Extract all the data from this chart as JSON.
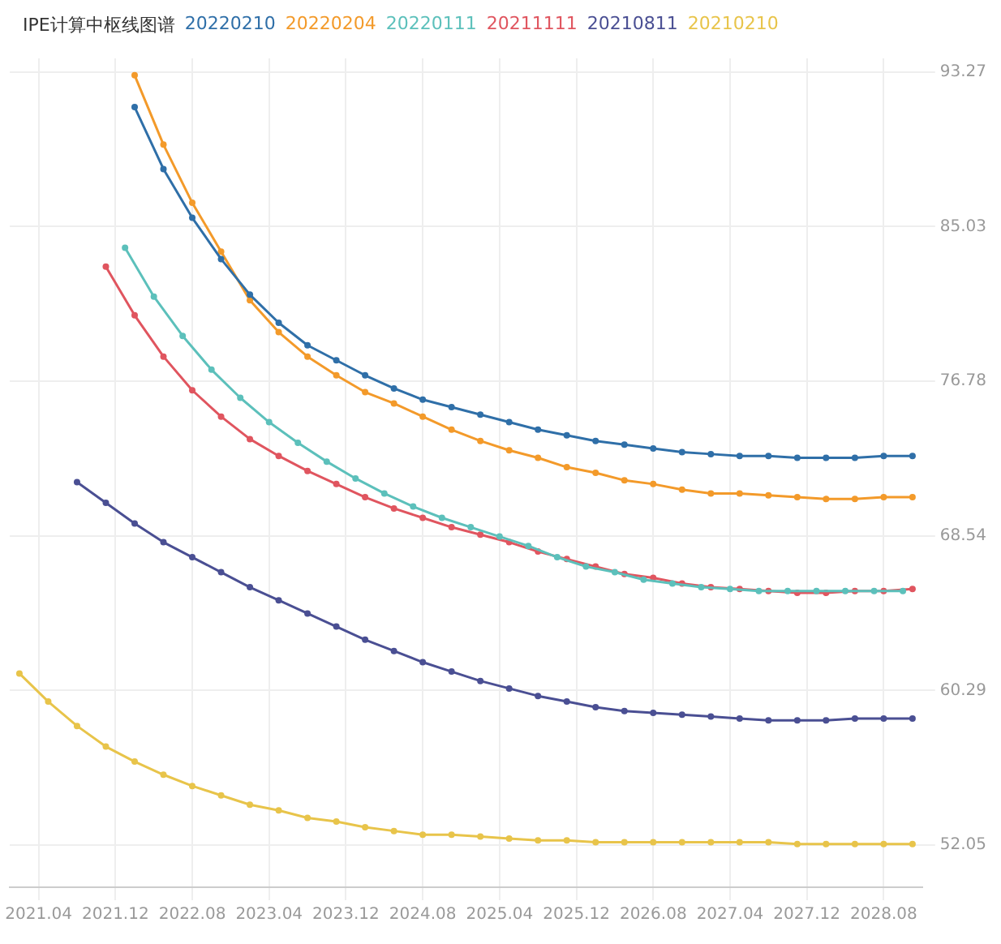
{
  "chart_data": {
    "type": "line",
    "title": "IPE计算中枢线图谱",
    "legend": "top left",
    "marker": "circle",
    "grid": true,
    "xlim": [
      "2021-01",
      "2028-12"
    ],
    "xticks": [
      {
        "value": "2021-04",
        "label": "2021.04"
      },
      {
        "value": "2021-12",
        "label": "2021.12"
      },
      {
        "value": "2022-08",
        "label": "2022.08"
      },
      {
        "value": "2023-04",
        "label": "2023.04"
      },
      {
        "value": "2023-12",
        "label": "2023.12"
      },
      {
        "value": "2024-08",
        "label": "2024.08"
      },
      {
        "value": "2025-04",
        "label": "2025.04"
      },
      {
        "value": "2025-12",
        "label": "2025.12"
      },
      {
        "value": "2026-08",
        "label": "2026.08"
      },
      {
        "value": "2027-04",
        "label": "2027.04"
      },
      {
        "value": "2027-12",
        "label": "2027.12"
      },
      {
        "value": "2028-08",
        "label": "2028.08"
      }
    ],
    "ylim": [
      49.8,
      94
    ],
    "yticks": [
      52.05,
      60.29,
      68.54,
      76.78,
      85.03,
      93.27
    ],
    "series": [
      {
        "name": "20220210",
        "color": "#2f6fa8",
        "x": [
          "2022-02",
          "2022-05",
          "2022-08",
          "2022-11",
          "2023-02",
          "2023-05",
          "2023-08",
          "2023-11",
          "2024-02",
          "2024-05",
          "2024-08",
          "2024-11",
          "2025-02",
          "2025-05",
          "2025-08",
          "2025-11",
          "2026-02",
          "2026-05",
          "2026-08",
          "2026-11",
          "2027-02",
          "2027-05",
          "2027-08",
          "2027-11",
          "2028-02",
          "2028-05",
          "2028-08",
          "2028-11"
        ],
        "values": [
          91.4,
          88.1,
          85.5,
          83.3,
          81.4,
          79.9,
          78.7,
          77.9,
          77.1,
          76.4,
          75.8,
          75.4,
          75.0,
          74.6,
          74.2,
          73.9,
          73.6,
          73.4,
          73.2,
          73.0,
          72.9,
          72.8,
          72.8,
          72.7,
          72.7,
          72.7,
          72.8,
          72.8
        ]
      },
      {
        "name": "20220204",
        "color": "#f39a2a",
        "x": [
          "2022-02",
          "2022-05",
          "2022-08",
          "2022-11",
          "2023-02",
          "2023-05",
          "2023-08",
          "2023-11",
          "2024-02",
          "2024-05",
          "2024-08",
          "2024-11",
          "2025-02",
          "2025-05",
          "2025-08",
          "2025-11",
          "2026-02",
          "2026-05",
          "2026-08",
          "2026-11",
          "2027-02",
          "2027-05",
          "2027-08",
          "2027-11",
          "2028-02",
          "2028-05",
          "2028-08",
          "2028-11"
        ],
        "values": [
          93.1,
          89.4,
          86.3,
          83.7,
          81.1,
          79.4,
          78.1,
          77.1,
          76.2,
          75.6,
          74.9,
          74.2,
          73.6,
          73.1,
          72.7,
          72.2,
          71.9,
          71.5,
          71.3,
          71.0,
          70.8,
          70.8,
          70.7,
          70.6,
          70.5,
          70.5,
          70.6,
          70.6
        ]
      },
      {
        "name": "20220111",
        "color": "#5cc0bb",
        "x": [
          "2022-01",
          "2022-04",
          "2022-07",
          "2022-10",
          "2023-01",
          "2023-04",
          "2023-07",
          "2023-10",
          "2024-01",
          "2024-04",
          "2024-07",
          "2024-10",
          "2025-01",
          "2025-04",
          "2025-07",
          "2025-10",
          "2026-01",
          "2026-04",
          "2026-07",
          "2026-10",
          "2027-01",
          "2027-04",
          "2027-07",
          "2027-10",
          "2028-01",
          "2028-04",
          "2028-07",
          "2028-10"
        ],
        "values": [
          83.9,
          81.3,
          79.2,
          77.4,
          75.9,
          74.6,
          73.5,
          72.5,
          71.6,
          70.8,
          70.1,
          69.5,
          69.0,
          68.5,
          68.0,
          67.4,
          66.9,
          66.6,
          66.2,
          66.0,
          65.8,
          65.7,
          65.6,
          65.6,
          65.6,
          65.6,
          65.6,
          65.6
        ]
      },
      {
        "name": "20211111",
        "color": "#e0555f",
        "x": [
          "2021-11",
          "2022-02",
          "2022-05",
          "2022-08",
          "2022-11",
          "2023-02",
          "2023-05",
          "2023-08",
          "2023-11",
          "2024-02",
          "2024-05",
          "2024-08",
          "2024-11",
          "2025-02",
          "2025-05",
          "2025-08",
          "2025-11",
          "2026-02",
          "2026-05",
          "2026-08",
          "2026-11",
          "2027-02",
          "2027-05",
          "2027-08",
          "2027-11",
          "2028-02",
          "2028-05",
          "2028-08",
          "2028-11"
        ],
        "values": [
          82.9,
          80.3,
          78.1,
          76.3,
          74.9,
          73.7,
          72.8,
          72.0,
          71.3,
          70.6,
          70.0,
          69.5,
          69.0,
          68.6,
          68.2,
          67.7,
          67.3,
          66.9,
          66.5,
          66.3,
          66.0,
          65.8,
          65.7,
          65.6,
          65.5,
          65.5,
          65.6,
          65.6,
          65.7
        ]
      },
      {
        "name": "20210811",
        "color": "#4a4f93",
        "x": [
          "2021-08",
          "2021-11",
          "2022-02",
          "2022-05",
          "2022-08",
          "2022-11",
          "2023-02",
          "2023-05",
          "2023-08",
          "2023-11",
          "2024-02",
          "2024-05",
          "2024-08",
          "2024-11",
          "2025-02",
          "2025-05",
          "2025-08",
          "2025-11",
          "2026-02",
          "2026-05",
          "2026-08",
          "2026-11",
          "2027-02",
          "2027-05",
          "2027-08",
          "2027-11",
          "2028-02",
          "2028-05",
          "2028-08",
          "2028-11"
        ],
        "values": [
          71.4,
          70.3,
          69.2,
          68.2,
          67.4,
          66.6,
          65.8,
          65.1,
          64.4,
          63.7,
          63.0,
          62.4,
          61.8,
          61.3,
          60.8,
          60.4,
          60.0,
          59.7,
          59.4,
          59.2,
          59.1,
          59.0,
          58.9,
          58.8,
          58.7,
          58.7,
          58.7,
          58.8,
          58.8,
          58.8
        ]
      },
      {
        "name": "20210210",
        "color": "#e8c44a",
        "x": [
          "2021-02",
          "2021-05",
          "2021-08",
          "2021-11",
          "2022-02",
          "2022-05",
          "2022-08",
          "2022-11",
          "2023-02",
          "2023-05",
          "2023-08",
          "2023-11",
          "2024-02",
          "2024-05",
          "2024-08",
          "2024-11",
          "2025-02",
          "2025-05",
          "2025-08",
          "2025-11",
          "2026-02",
          "2026-05",
          "2026-08",
          "2026-11",
          "2027-02",
          "2027-05",
          "2027-08",
          "2027-11",
          "2028-02",
          "2028-05",
          "2028-08",
          "2028-11"
        ],
        "values": [
          61.2,
          59.7,
          58.4,
          57.3,
          56.5,
          55.8,
          55.2,
          54.7,
          54.2,
          53.9,
          53.5,
          53.3,
          53.0,
          52.8,
          52.6,
          52.6,
          52.5,
          52.4,
          52.3,
          52.3,
          52.2,
          52.2,
          52.2,
          52.2,
          52.2,
          52.2,
          52.2,
          52.1,
          52.1,
          52.1,
          52.1,
          52.1
        ]
      }
    ]
  }
}
